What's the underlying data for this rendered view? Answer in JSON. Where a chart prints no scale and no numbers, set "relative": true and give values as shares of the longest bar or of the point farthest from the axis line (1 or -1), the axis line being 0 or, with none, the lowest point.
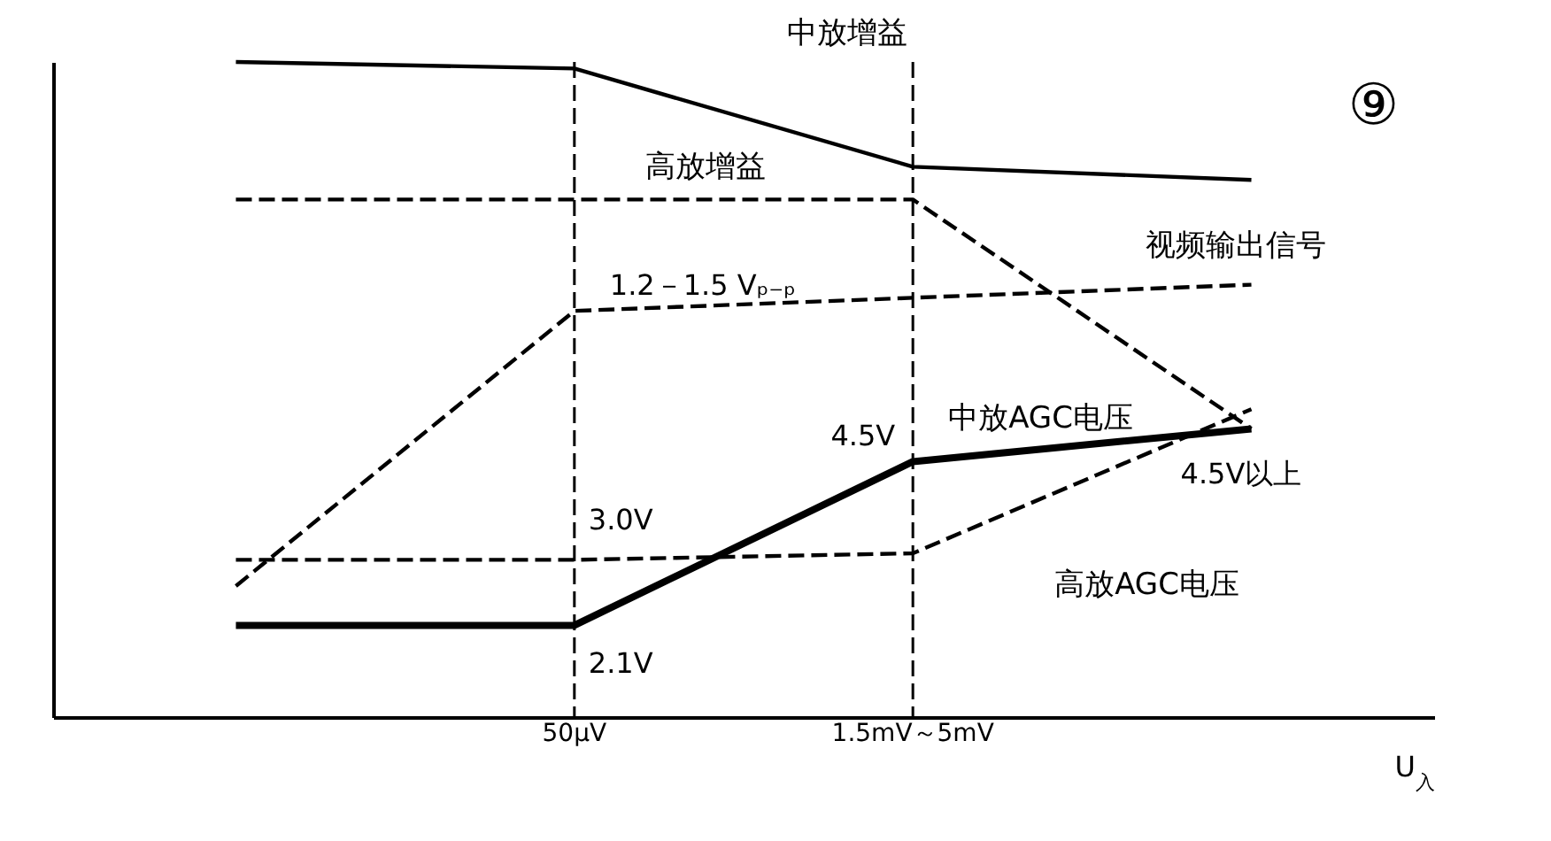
{
  "chart_data": {
    "type": "line",
    "relative": true,
    "categories": [
      null,
      "50μV",
      "1.5mV～5mV",
      null
    ],
    "xlabel": "U$_{入}$",
    "grid": false,
    "marker": "none",
    "series": [
      {
        "name": "中放增益",
        "color": "#000000",
        "line_style": "solid",
        "values": [
          1.0,
          0.99,
          0.84,
          0.82
        ]
      },
      {
        "name": "高放增益",
        "color": "#000000",
        "line_style": "dashed",
        "values": [
          0.79,
          0.79,
          0.79,
          0.44
        ]
      },
      {
        "name": "视频输出信号",
        "color": "#000000",
        "line_style": "dashed",
        "values": [
          0.2,
          0.62,
          0.64,
          0.66
        ]
      },
      {
        "name": "中放AGC电压",
        "color": "#000000",
        "line_style": "solid",
        "values": [
          0.14,
          0.14,
          0.39,
          0.44
        ]
      },
      {
        "name": "高放AGC电压",
        "color": "#000000",
        "line_style": "dashed",
        "values": [
          0.24,
          0.24,
          0.25,
          0.47
        ]
      }
    ],
    "ref_lines": [
      {
        "axis": "x",
        "value": "50μV",
        "line_style": "dashed"
      },
      {
        "axis": "x",
        "value": "1.5mV～5mV",
        "line_style": "dashed"
      }
    ],
    "annotations": [
      "⑨",
      {
        "text": "1.2－1.5 Vₚ₋ₚ",
        "x": "50μV",
        "y": 0.62
      },
      {
        "text": "4.5V",
        "x": "1.5mV～5mV",
        "y": 0.39
      },
      {
        "text": "3.0V",
        "x": "50μV",
        "y": 0.24
      },
      {
        "text": "2.1V",
        "x": "50μV",
        "y": 0.14
      },
      {
        "text": "4.5V以上",
        "y": 0.44
      }
    ]
  }
}
